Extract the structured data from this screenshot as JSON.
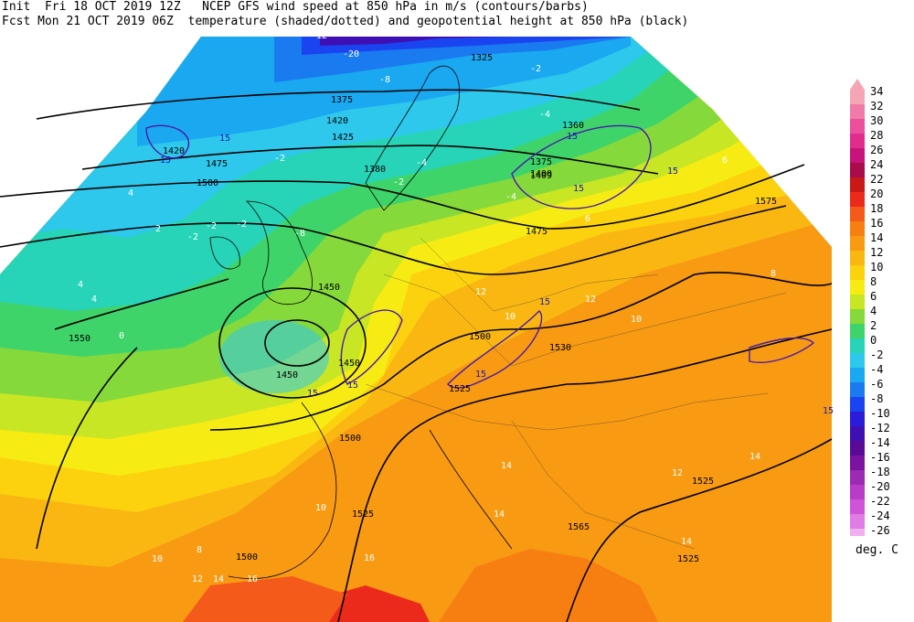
{
  "header": {
    "line1": "Init  Fri 18 OCT 2019 12Z   NCEP GFS wind speed at 850 hPa in m/s (contours/barbs)",
    "line2": "Fcst Mon 21 OCT 2019 06Z  temperature (shaded/dotted) and geopotential height at 850 hPa (black)"
  },
  "legend": {
    "units": "deg. C",
    "steps": [
      {
        "label": "34",
        "color": "#f4a6b6"
      },
      {
        "label": "32",
        "color": "#f07aa8"
      },
      {
        "label": "30",
        "color": "#ec4f9c"
      },
      {
        "label": "28",
        "color": "#e02c8c"
      },
      {
        "label": "26",
        "color": "#c8147a"
      },
      {
        "label": "24",
        "color": "#a80c4a"
      },
      {
        "label": "22",
        "color": "#c81818"
      },
      {
        "label": "20",
        "color": "#ec2a1c"
      },
      {
        "label": "18",
        "color": "#f45a1a"
      },
      {
        "label": "16",
        "color": "#f77f12"
      },
      {
        "label": "14",
        "color": "#f89a12"
      },
      {
        "label": "12",
        "color": "#fab712"
      },
      {
        "label": "10",
        "color": "#fcd20f"
      },
      {
        "label": "8",
        "color": "#f6ec14"
      },
      {
        "label": "6",
        "color": "#c8e624"
      },
      {
        "label": "4",
        "color": "#86d93a"
      },
      {
        "label": "2",
        "color": "#3fd46a"
      },
      {
        "label": "0",
        "color": "#27d4b8"
      },
      {
        "label": "-2",
        "color": "#2ec8ec"
      },
      {
        "label": "-4",
        "color": "#1aa8f0"
      },
      {
        "label": "-6",
        "color": "#1a7af0"
      },
      {
        "label": "-8",
        "color": "#1a44f0"
      },
      {
        "label": "-10",
        "color": "#2a1cd8"
      },
      {
        "label": "-12",
        "color": "#3e10b4"
      },
      {
        "label": "-14",
        "color": "#5a0a96"
      },
      {
        "label": "-16",
        "color": "#7a14a0"
      },
      {
        "label": "-18",
        "color": "#9c2ab4"
      },
      {
        "label": "-20",
        "color": "#b83cc8"
      },
      {
        "label": "-22",
        "color": "#d054d8"
      },
      {
        "label": "-24",
        "color": "#e07ce4"
      },
      {
        "label": "-26",
        "color": "#f0b0f0"
      }
    ]
  },
  "map_labels": {
    "heights": [
      "1325",
      "1375",
      "1420",
      "1425",
      "1475",
      "1500",
      "1400",
      "1380",
      "1360",
      "1375",
      "1409",
      "1420",
      "1450",
      "1475",
      "1575",
      "1450",
      "1450",
      "1500",
      "1530",
      "1525",
      "1550",
      "1500",
      "1525",
      "1500",
      "1525",
      "1525",
      "1565",
      "1525",
      "1550",
      "1525"
    ],
    "winds": [
      "15",
      "15",
      "15",
      "15",
      "15",
      "15",
      "15",
      "15",
      "15",
      "15"
    ],
    "temps": [
      "-12",
      "-20",
      "-8",
      "-4",
      "-2",
      "-2",
      "-4",
      "-2",
      "-8",
      "-2",
      "-4",
      "0",
      "4",
      "6",
      "2",
      "4",
      "4",
      "6",
      "8",
      "10",
      "10",
      "12",
      "12",
      "14",
      "14",
      "14",
      "16",
      "14",
      "12",
      "16",
      "10",
      "10",
      "8",
      "12",
      "14",
      "-2",
      "-2"
    ]
  }
}
